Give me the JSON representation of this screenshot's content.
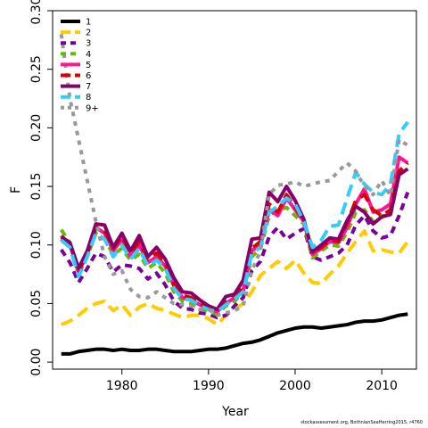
{
  "chart_data": {
    "type": "line",
    "xlabel": "Year",
    "ylabel": "F",
    "xlim": [
      1972,
      2014
    ],
    "ylim": [
      0,
      0.3
    ],
    "xticks": [
      1980,
      1990,
      2000,
      2010
    ],
    "yticks": [
      0.0,
      0.05,
      0.1,
      0.15,
      0.2,
      0.25,
      0.3
    ],
    "ytick_labels": [
      "0.00",
      "0.05",
      "0.10",
      "0.15",
      "0.20",
      "0.25",
      "0.30"
    ],
    "legend_position": "top-left",
    "x": [
      1973,
      1974,
      1975,
      1976,
      1977,
      1978,
      1979,
      1980,
      1981,
      1982,
      1983,
      1984,
      1985,
      1986,
      1987,
      1988,
      1989,
      1990,
      1991,
      1992,
      1993,
      1994,
      1995,
      1996,
      1997,
      1998,
      1999,
      2000,
      2001,
      2002,
      2003,
      2004,
      2005,
      2006,
      2007,
      2008,
      2009,
      2010,
      2011,
      2012,
      2013
    ],
    "series": [
      {
        "name": "1",
        "color": "#000000",
        "dash": "solid",
        "values": [
          0.007,
          0.007,
          0.009,
          0.01,
          0.011,
          0.011,
          0.01,
          0.011,
          0.01,
          0.01,
          0.011,
          0.011,
          0.01,
          0.009,
          0.009,
          0.009,
          0.01,
          0.011,
          0.011,
          0.012,
          0.014,
          0.016,
          0.017,
          0.019,
          0.022,
          0.025,
          0.027,
          0.029,
          0.03,
          0.03,
          0.029,
          0.03,
          0.031,
          0.032,
          0.034,
          0.035,
          0.035,
          0.036,
          0.038,
          0.04,
          0.041
        ]
      },
      {
        "name": "2",
        "color": "#ffcc00",
        "dash": "long",
        "values": [
          0.032,
          0.035,
          0.04,
          0.046,
          0.05,
          0.052,
          0.044,
          0.049,
          0.04,
          0.047,
          0.05,
          0.046,
          0.044,
          0.041,
          0.038,
          0.04,
          0.04,
          0.037,
          0.032,
          0.04,
          0.045,
          0.05,
          0.06,
          0.074,
          0.08,
          0.086,
          0.08,
          0.087,
          0.076,
          0.068,
          0.067,
          0.075,
          0.082,
          0.093,
          0.103,
          0.112,
          0.095,
          0.096,
          0.094,
          0.093,
          0.103
        ]
      },
      {
        "name": "3",
        "color": "#7a0099",
        "dash": "medium",
        "values": [
          0.096,
          0.085,
          0.068,
          0.08,
          0.093,
          0.09,
          0.077,
          0.083,
          0.082,
          0.08,
          0.071,
          0.076,
          0.066,
          0.052,
          0.046,
          0.045,
          0.042,
          0.041,
          0.038,
          0.04,
          0.048,
          0.055,
          0.078,
          0.086,
          0.107,
          0.115,
          0.105,
          0.11,
          0.114,
          0.09,
          0.087,
          0.09,
          0.093,
          0.1,
          0.117,
          0.125,
          0.112,
          0.106,
          0.108,
          0.125,
          0.145
        ]
      },
      {
        "name": "4",
        "color": "#66bb00",
        "dash": "medium",
        "values": [
          0.113,
          0.102,
          0.075,
          0.09,
          0.11,
          0.105,
          0.092,
          0.097,
          0.087,
          0.092,
          0.08,
          0.085,
          0.076,
          0.06,
          0.052,
          0.05,
          0.046,
          0.043,
          0.041,
          0.048,
          0.052,
          0.06,
          0.09,
          0.097,
          0.125,
          0.13,
          0.132,
          0.125,
          0.118,
          0.089,
          0.095,
          0.1,
          0.099,
          0.111,
          0.128,
          0.13,
          0.12,
          0.125,
          0.125,
          0.16,
          0.165
        ]
      },
      {
        "name": "5",
        "color": "#ff1493",
        "dash": "solid",
        "values": [
          0.108,
          0.1,
          0.077,
          0.092,
          0.115,
          0.11,
          0.095,
          0.105,
          0.09,
          0.1,
          0.085,
          0.09,
          0.082,
          0.065,
          0.055,
          0.053,
          0.049,
          0.046,
          0.043,
          0.05,
          0.055,
          0.062,
          0.095,
          0.1,
          0.13,
          0.125,
          0.14,
          0.13,
          0.12,
          0.092,
          0.097,
          0.103,
          0.102,
          0.115,
          0.135,
          0.148,
          0.128,
          0.13,
          0.135,
          0.175,
          0.17
        ]
      },
      {
        "name": "6",
        "color": "#dd0000",
        "dash": "long",
        "values": [
          0.105,
          0.1,
          0.078,
          0.093,
          0.115,
          0.112,
          0.097,
          0.107,
          0.093,
          0.103,
          0.088,
          0.093,
          0.085,
          0.066,
          0.057,
          0.055,
          0.05,
          0.047,
          0.044,
          0.051,
          0.057,
          0.065,
          0.097,
          0.103,
          0.135,
          0.128,
          0.143,
          0.132,
          0.121,
          0.093,
          0.098,
          0.104,
          0.103,
          0.119,
          0.138,
          0.143,
          0.13,
          0.125,
          0.13,
          0.163,
          0.17
        ]
      },
      {
        "name": "7",
        "color": "#880066",
        "dash": "solid",
        "values": [
          0.107,
          0.102,
          0.08,
          0.095,
          0.118,
          0.117,
          0.098,
          0.11,
          0.095,
          0.108,
          0.09,
          0.098,
          0.088,
          0.072,
          0.06,
          0.059,
          0.053,
          0.048,
          0.045,
          0.056,
          0.058,
          0.07,
          0.105,
          0.106,
          0.145,
          0.137,
          0.15,
          0.138,
          0.122,
          0.094,
          0.1,
          0.106,
          0.105,
          0.121,
          0.133,
          0.128,
          0.118,
          0.124,
          0.126,
          0.16,
          0.165
        ]
      },
      {
        "name": "8",
        "color": "#33ccff",
        "dash": "long",
        "values": [
          0.104,
          0.098,
          0.073,
          0.09,
          0.11,
          0.105,
          0.09,
          0.1,
          0.088,
          0.097,
          0.082,
          0.087,
          0.08,
          0.063,
          0.054,
          0.053,
          0.048,
          0.045,
          0.043,
          0.049,
          0.054,
          0.06,
          0.093,
          0.098,
          0.128,
          0.133,
          0.14,
          0.135,
          0.12,
          0.098,
          0.104,
          0.116,
          0.117,
          0.14,
          0.162,
          0.152,
          0.145,
          0.143,
          0.152,
          0.195,
          0.205
        ]
      },
      {
        "name": "9+",
        "color": "#999999",
        "dash": "dotted",
        "values": [
          0.28,
          0.225,
          0.19,
          0.155,
          0.12,
          0.09,
          0.075,
          0.078,
          0.062,
          0.056,
          0.055,
          0.06,
          0.055,
          0.05,
          0.049,
          0.048,
          0.045,
          0.045,
          0.04,
          0.042,
          0.044,
          0.048,
          0.078,
          0.095,
          0.143,
          0.151,
          0.152,
          0.154,
          0.15,
          0.152,
          0.154,
          0.155,
          0.163,
          0.17,
          0.163,
          0.15,
          0.143,
          0.155,
          0.142,
          0.19,
          0.185
        ]
      }
    ]
  },
  "credit_text": "stockassessment.org, BothnianSeaHerring2015, r4760"
}
